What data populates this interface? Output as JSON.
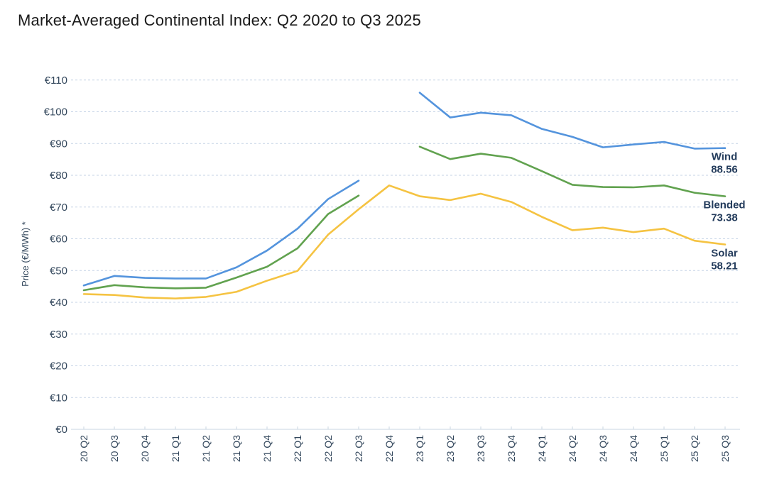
{
  "title": "Market-Averaged Continental Index: Q2 2020 to Q3 2025",
  "colors": {
    "title_text": "#1a1a1a",
    "axis_text": "#33475c",
    "gridline": "#c5d3e6",
    "axis_line": "#c9d5e2",
    "series_label_text": "#243c5c",
    "wind_line": "#5494dd",
    "blended_line": "#61a24f",
    "solar_line": "#f5c342"
  },
  "chart_data": {
    "type": "line",
    "title": "Market-Averaged Continental Index: Q2 2020 to Q3 2025",
    "xlabel": "",
    "ylabel": "Price (€/MWh) *",
    "ylim": [
      0,
      110
    ],
    "ytick_step": 10,
    "ytick_labels": [
      "€0",
      "€10",
      "€20",
      "€30",
      "€40",
      "€50",
      "€60",
      "€70",
      "€80",
      "€90",
      "€100",
      "€110"
    ],
    "grid": "horizontal dashed gridlines on, no vertical gridlines",
    "legend_position": "inline labels at right end of each line",
    "categories": [
      "20 Q2",
      "20 Q3",
      "20 Q4",
      "21 Q1",
      "21 Q2",
      "21 Q3",
      "21 Q4",
      "22 Q1",
      "22 Q2",
      "22 Q3",
      "22 Q4",
      "23 Q1",
      "23 Q2",
      "23 Q3",
      "23 Q4",
      "24 Q1",
      "24 Q2",
      "24 Q3",
      "24 Q4",
      "25 Q1",
      "25 Q2",
      "25 Q3"
    ],
    "series": [
      {
        "name": "Wind",
        "color": "#5494dd",
        "end_label": "Wind",
        "end_value_label": "88.56",
        "values": [
          45.3,
          48.3,
          47.7,
          47.5,
          47.5,
          51.0,
          56.3,
          63.2,
          72.5,
          78.3,
          null,
          106.0,
          98.2,
          99.7,
          98.9,
          94.6,
          92.1,
          88.8,
          89.7,
          90.5,
          88.4,
          88.56
        ]
      },
      {
        "name": "Blended",
        "color": "#61a24f",
        "end_label": "Blended",
        "end_value_label": "73.38",
        "values": [
          43.8,
          45.4,
          44.7,
          44.4,
          44.6,
          47.8,
          51.2,
          57.0,
          67.8,
          73.6,
          null,
          89.0,
          85.1,
          86.8,
          85.5,
          81.3,
          77.0,
          76.3,
          76.2,
          76.8,
          74.5,
          73.38
        ]
      },
      {
        "name": "Solar",
        "color": "#f5c342",
        "end_label": "Solar",
        "end_value_label": "58.21",
        "values": [
          42.6,
          42.3,
          41.5,
          41.2,
          41.7,
          43.3,
          46.8,
          49.9,
          61.3,
          69.3,
          76.8,
          73.4,
          72.2,
          74.2,
          71.6,
          66.9,
          62.7,
          63.5,
          62.1,
          63.2,
          59.4,
          58.21
        ]
      }
    ]
  }
}
